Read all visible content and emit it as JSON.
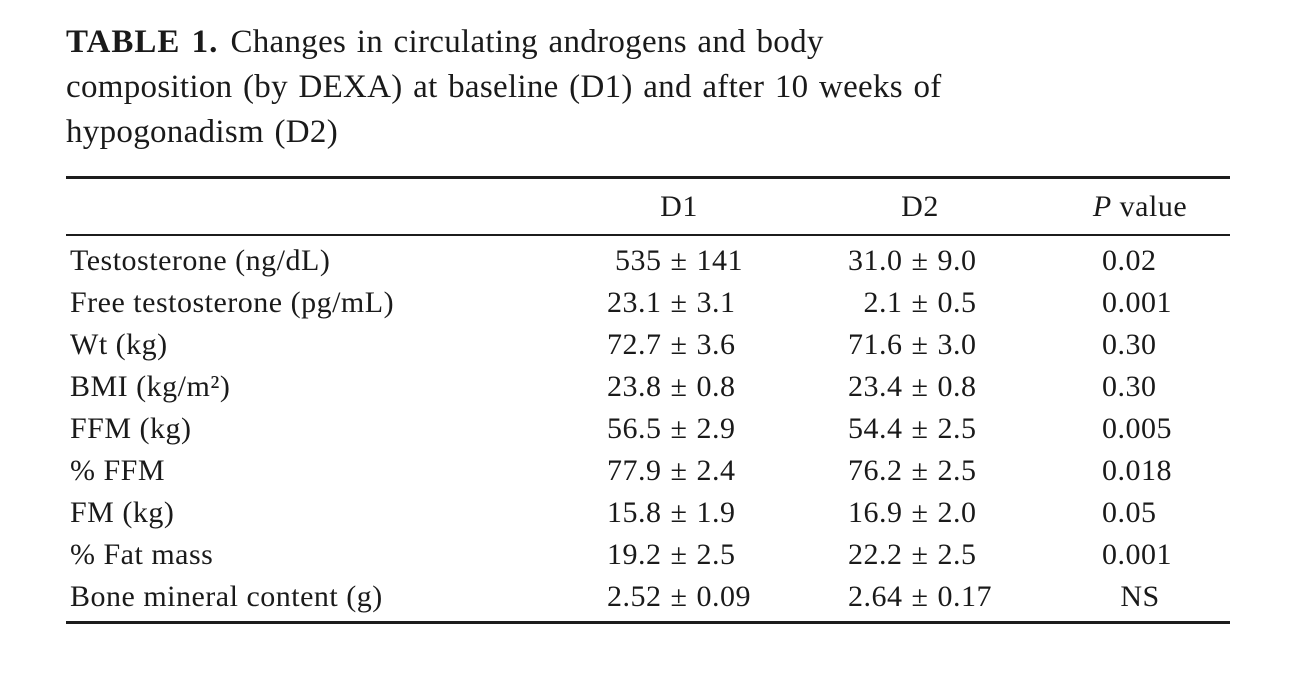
{
  "table": {
    "label": "TABLE 1.",
    "caption_line1": "Changes in circulating androgens and body",
    "caption_line2": "composition (by DEXA) at baseline (D1) and after 10 weeks of",
    "caption_line3": "hypogonadism (D2)",
    "columns": {
      "label": "",
      "d1": "D1",
      "d2": "D2",
      "p_italic": "P",
      "p_rest": " value"
    },
    "rows": [
      {
        "label": "Testosterone (ng/dL)",
        "d1": "535 ± 141",
        "d2": "31.0 ± 9.0",
        "p": "0.02"
      },
      {
        "label": "Free testosterone (pg/mL)",
        "d1": "23.1 ± 3.1",
        "d2": "2.1 ± 0.5",
        "p": "0.001"
      },
      {
        "label": "Wt (kg)",
        "d1": "72.7 ± 3.6",
        "d2": "71.6 ± 3.0",
        "p": "0.30"
      },
      {
        "label": "BMI (kg/m²)",
        "d1": "23.8 ± 0.8",
        "d2": "23.4 ± 0.8",
        "p": "0.30"
      },
      {
        "label": "FFM (kg)",
        "d1": "56.5 ± 2.9",
        "d2": "54.4 ± 2.5",
        "p": "0.005"
      },
      {
        "label": "% FFM",
        "d1": "77.9 ± 2.4",
        "d2": "76.2 ± 2.5",
        "p": "0.018"
      },
      {
        "label": "FM (kg)",
        "d1": "15.8 ± 1.9",
        "d2": "16.9 ± 2.0",
        "p": "0.05"
      },
      {
        "label": "% Fat mass",
        "d1": "19.2 ± 2.5",
        "d2": "22.2 ± 2.5",
        "p": "0.001"
      },
      {
        "label": "Bone mineral content (g)",
        "d1": "2.52 ± 0.09",
        "d2": "2.64 ± 0.17",
        "p": "NS"
      }
    ]
  },
  "colors": {
    "background": "#ffffff",
    "text": "#1a1a1a",
    "rule": "#1c1c1c"
  }
}
